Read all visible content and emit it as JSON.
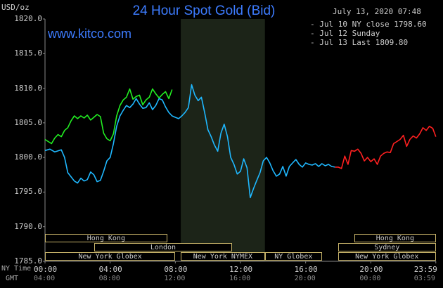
{
  "header": {
    "title": "24 Hour Spot Gold (Bid)",
    "site": "www.kitco.com",
    "unit": "USD/oz",
    "datetime": "July 13, 2020 07:48"
  },
  "legend": [
    {
      "label": "- Jul 10 NY close 1798.60",
      "color": "#1fb8ff"
    },
    {
      "label": "- Jul 12 Sunday",
      "color": "#ff2020"
    },
    {
      "label": "- Jul 13 Last 1809.80",
      "color": "#22ee22"
    }
  ],
  "sessions": [
    {
      "label": "Hong Kong",
      "row": 0,
      "start": "00:00",
      "end": "07:30"
    },
    {
      "label": "Hong Kong",
      "row": 0,
      "start": "19:00",
      "end": "23:59"
    },
    {
      "label": "London",
      "row": 1,
      "start": "03:00",
      "end": "11:30"
    },
    {
      "label": "Sydney",
      "row": 1,
      "start": "18:00",
      "end": "23:59"
    },
    {
      "label": "New York Globex",
      "row": 2,
      "start": "00:00",
      "end": "08:00"
    },
    {
      "label": "New York NYMEX",
      "row": 2,
      "start": "08:20",
      "end": "13:30"
    },
    {
      "label": "NY Globex",
      "row": 2,
      "start": "13:30",
      "end": "17:00"
    },
    {
      "label": "New York Globex",
      "row": 2,
      "start": "18:00",
      "end": "23:59"
    }
  ],
  "axis_rows": {
    "ny_time": "NY Time",
    "gmt": "GMT"
  },
  "chart_data": {
    "type": "line",
    "title": "24 Hour Spot Gold (Bid)",
    "ylabel": "USD/oz",
    "ylim": [
      1785.0,
      1820.0
    ],
    "yticks": [
      "1820.0",
      "1815.0",
      "1810.0",
      "1805.0",
      "1800.0",
      "1795.0",
      "1790.0",
      "1785.0"
    ],
    "xlim": [
      0,
      24
    ],
    "xticks": [
      "00:00",
      "04:00",
      "08:00",
      "12:00",
      "16:00",
      "20:00",
      "23:59"
    ],
    "xticks_gmt": [
      "04:00",
      "08:00",
      "12:00",
      "16:00",
      "20:00",
      "00:00",
      "03:59"
    ],
    "shaded_interval": [
      "08:20",
      "13:30"
    ],
    "grid": false,
    "series": [
      {
        "name": "Jul 10 NY close 1798.60",
        "color": "#1fb8ff",
        "x": [
          0.0,
          0.3,
          0.6,
          1.0,
          1.2,
          1.4,
          1.6,
          1.8,
          2.0,
          2.2,
          2.4,
          2.6,
          2.8,
          3.0,
          3.2,
          3.4,
          3.6,
          3.8,
          4.0,
          4.2,
          4.4,
          4.6,
          4.8,
          5.0,
          5.2,
          5.4,
          5.6,
          5.8,
          6.0,
          6.2,
          6.4,
          6.6,
          6.8,
          7.0,
          7.2,
          7.4,
          7.6,
          7.8,
          8.0,
          8.2,
          8.4,
          8.6,
          8.8,
          9.0,
          9.2,
          9.4,
          9.6,
          9.8,
          10.0,
          10.2,
          10.4,
          10.6,
          10.8,
          11.0,
          11.2,
          11.4,
          11.6,
          11.8,
          12.0,
          12.2,
          12.4,
          12.6,
          12.8,
          13.0,
          13.2,
          13.4,
          13.6,
          13.8,
          14.0,
          14.2,
          14.4,
          14.6,
          14.8,
          15.0,
          15.2,
          15.4,
          15.6,
          15.8,
          16.0,
          16.2,
          16.4,
          16.6,
          16.8,
          17.0,
          17.2,
          17.4,
          17.6,
          17.8
        ],
        "y": [
          1801.0,
          1801.2,
          1800.8,
          1801.1,
          1800.0,
          1797.8,
          1797.2,
          1796.6,
          1796.3,
          1797.0,
          1796.6,
          1796.8,
          1797.9,
          1797.5,
          1796.5,
          1796.7,
          1798.0,
          1799.5,
          1800.0,
          1802.0,
          1804.5,
          1806.0,
          1806.8,
          1807.5,
          1807.2,
          1807.7,
          1808.5,
          1807.7,
          1807.1,
          1807.2,
          1807.9,
          1806.9,
          1807.5,
          1808.5,
          1808.3,
          1807.3,
          1806.5,
          1806.0,
          1805.8,
          1805.6,
          1806.0,
          1806.5,
          1807.2,
          1810.5,
          1809.0,
          1808.2,
          1808.7,
          1806.5,
          1804.0,
          1803.0,
          1801.8,
          1800.9,
          1803.5,
          1804.8,
          1803.0,
          1800.0,
          1799.0,
          1797.6,
          1798.0,
          1799.8,
          1798.5,
          1794.2,
          1795.5,
          1796.7,
          1797.8,
          1799.5,
          1800.0,
          1799.2,
          1798.1,
          1797.3,
          1797.6,
          1798.7,
          1797.3,
          1798.7,
          1799.2,
          1799.7,
          1799.0,
          1798.6,
          1799.2,
          1799.0,
          1798.9,
          1799.1,
          1798.7,
          1799.1,
          1798.8,
          1799.0,
          1798.7,
          1798.6
        ]
      },
      {
        "name": "Jul 12 Sunday",
        "color": "#ff2020",
        "x": [
          17.8,
          18.0,
          18.2,
          18.4,
          18.6,
          18.8,
          19.0,
          19.2,
          19.4,
          19.6,
          19.8,
          20.0,
          20.2,
          20.4,
          20.6,
          20.8,
          21.0,
          21.2,
          21.4,
          21.6,
          21.8,
          22.0,
          22.2,
          22.4,
          22.6,
          22.8,
          23.0,
          23.2,
          23.4,
          23.6,
          23.8,
          23.99
        ],
        "y": [
          1798.6,
          1798.6,
          1798.4,
          1800.2,
          1799.0,
          1801.0,
          1800.9,
          1801.2,
          1800.6,
          1799.5,
          1800.0,
          1799.4,
          1799.8,
          1799.0,
          1800.2,
          1800.6,
          1800.8,
          1800.7,
          1802.0,
          1802.3,
          1802.6,
          1803.2,
          1801.6,
          1802.6,
          1803.1,
          1802.8,
          1803.4,
          1804.3,
          1803.9,
          1804.5,
          1804.2,
          1803.0
        ]
      },
      {
        "name": "Jul 13 Last 1809.80",
        "color": "#22ee22",
        "x": [
          0.0,
          0.2,
          0.4,
          0.6,
          0.8,
          1.0,
          1.2,
          1.4,
          1.6,
          1.8,
          2.0,
          2.2,
          2.4,
          2.6,
          2.8,
          3.0,
          3.2,
          3.4,
          3.6,
          3.8,
          4.0,
          4.2,
          4.4,
          4.6,
          4.8,
          5.0,
          5.2,
          5.4,
          5.6,
          5.8,
          6.0,
          6.2,
          6.4,
          6.6,
          6.8,
          7.0,
          7.2,
          7.4,
          7.6,
          7.8
        ],
        "y": [
          1802.6,
          1802.3,
          1802.0,
          1802.8,
          1803.3,
          1803.0,
          1803.9,
          1804.3,
          1805.3,
          1806.0,
          1805.6,
          1806.0,
          1805.7,
          1806.1,
          1805.4,
          1805.8,
          1806.2,
          1805.9,
          1803.5,
          1802.7,
          1802.4,
          1803.4,
          1806.0,
          1807.5,
          1808.3,
          1808.7,
          1809.9,
          1808.4,
          1808.8,
          1809.0,
          1807.6,
          1808.3,
          1808.7,
          1809.9,
          1809.2,
          1808.6,
          1809.1,
          1809.5,
          1808.5,
          1809.8
        ]
      }
    ]
  }
}
